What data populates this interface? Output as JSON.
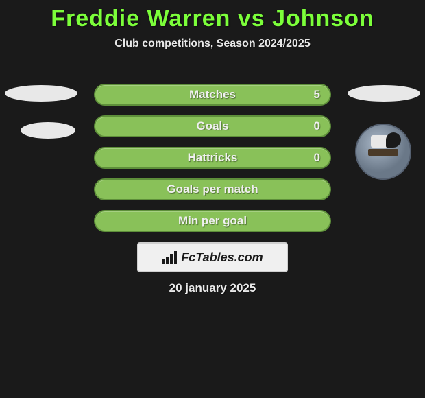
{
  "title": "Freddie Warren vs Johnson",
  "subtitle": "Club competitions, Season 2024/2025",
  "date": "20 january 2025",
  "brand": "FcTables.com",
  "colors": {
    "background": "#1a1a1a",
    "title": "#7cff3a",
    "bar_fill": "#89c159",
    "bar_border": "#5e8f3a",
    "text": "#e8e8e8",
    "avatar_placeholder": "#e8e8e8"
  },
  "bars": [
    {
      "label": "Matches",
      "value": "5"
    },
    {
      "label": "Goals",
      "value": "0"
    },
    {
      "label": "Hattricks",
      "value": "0"
    },
    {
      "label": "Goals per match",
      "value": ""
    },
    {
      "label": "Min per goal",
      "value": ""
    }
  ],
  "avatars": {
    "left_player": true,
    "right_player": true
  },
  "typography": {
    "title_fontsize": 34,
    "subtitle_fontsize": 16,
    "bar_label_fontsize": 17,
    "date_fontsize": 17
  }
}
